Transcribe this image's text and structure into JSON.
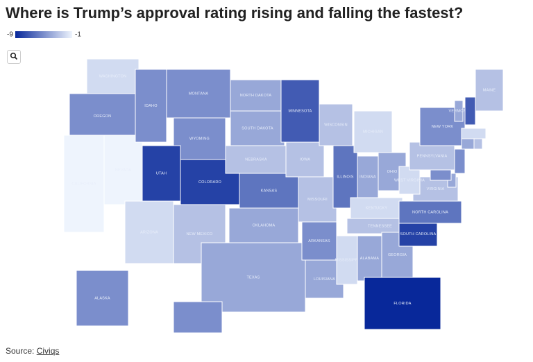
{
  "title": "Where is Trump’s approval rating rising and falling the fastest?",
  "legend": {
    "min": -9,
    "max": -1,
    "colors": [
      "#08289a",
      "#eef4fd"
    ]
  },
  "states": [
    {
      "name": "WASHINGTON",
      "value": -2
    },
    {
      "name": "OREGON",
      "value": -5
    },
    {
      "name": "CALIFORNIA",
      "value": -1
    },
    {
      "name": "NEVADA",
      "value": -1
    },
    {
      "name": "IDAHO",
      "value": -5
    },
    {
      "name": "MONTANA",
      "value": -5
    },
    {
      "name": "WYOMING",
      "value": -5
    },
    {
      "name": "UTAH",
      "value": -8
    },
    {
      "name": "COLORADO",
      "value": -8
    },
    {
      "name": "ARIZONA",
      "value": -2
    },
    {
      "name": "NEW MEXICO",
      "value": -3
    },
    {
      "name": "NORTH DAKOTA",
      "value": -4
    },
    {
      "name": "SOUTH DAKOTA",
      "value": -4
    },
    {
      "name": "NEBRASKA",
      "value": -3
    },
    {
      "name": "KANSAS",
      "value": -6
    },
    {
      "name": "OKLAHOMA",
      "value": -4
    },
    {
      "name": "TEXAS",
      "value": -4
    },
    {
      "name": "MINNESOTA",
      "value": -7
    },
    {
      "name": "IOWA",
      "value": -3
    },
    {
      "name": "MISSOURI",
      "value": -3
    },
    {
      "name": "ARKANSAS",
      "value": -5
    },
    {
      "name": "LOUISIANA",
      "value": -4
    },
    {
      "name": "WISCONSIN",
      "value": -3
    },
    {
      "name": "ILLINOIS",
      "value": -6
    },
    {
      "name": "MICHIGAN",
      "value": -2
    },
    {
      "name": "INDIANA",
      "value": -4
    },
    {
      "name": "OHIO",
      "value": -4
    },
    {
      "name": "KENTUCKY",
      "value": -2
    },
    {
      "name": "TENNESSEE",
      "value": -3
    },
    {
      "name": "MISSISSIPPI",
      "value": -2
    },
    {
      "name": "ALABAMA",
      "value": -4
    },
    {
      "name": "GEORGIA",
      "value": -4
    },
    {
      "name": "FLORIDA",
      "value": -9
    },
    {
      "name": "SOUTH CAROLINA",
      "value": -8
    },
    {
      "name": "NORTH CAROLINA",
      "value": -6
    },
    {
      "name": "VIRGINIA",
      "value": -3
    },
    {
      "name": "WEST VIRGINIA",
      "value": -2
    },
    {
      "name": "PENNSYLVANIA",
      "value": -3
    },
    {
      "name": "NEW YORK",
      "value": -5
    },
    {
      "name": "VERMONT",
      "value": -4
    },
    {
      "value": -7
    },
    {
      "name": "MAINE",
      "value": -3
    },
    {
      "value": -2
    },
    {
      "value": -4
    },
    {
      "value": -3
    },
    {
      "value": -5
    },
    {
      "value": -4
    },
    {
      "value": -5
    },
    {
      "name": "ALASKA",
      "value": -5
    },
    {
      "value": -5
    }
  ],
  "source": {
    "label": "Source:",
    "link": "Civiqs"
  }
}
